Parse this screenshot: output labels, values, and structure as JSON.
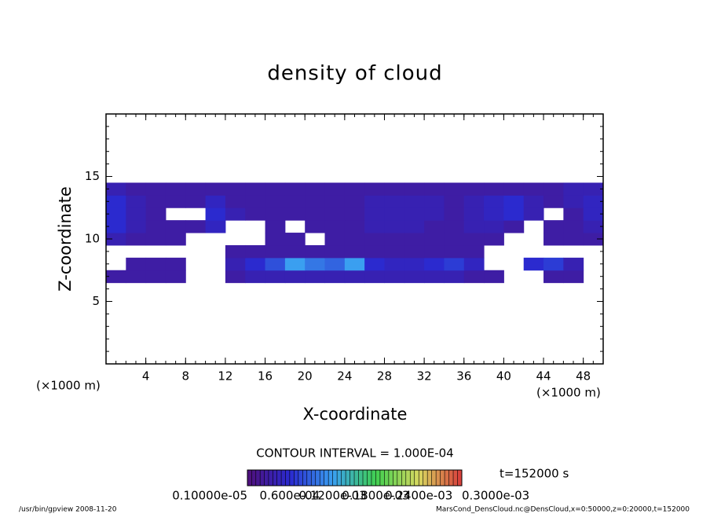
{
  "chart_data": {
    "type": "heatmap",
    "title": "density of cloud",
    "x_label": "X-coordinate",
    "y_label": "Z-coordinate",
    "x_unit": "(×1000 m)",
    "x_unit_right": "(×1000 m)",
    "contour_interval": "CONTOUR INTERVAL = 1.000E-04",
    "time_label": "t=152000 s",
    "footer_left": "/usr/bin/gpview  2008-11-20",
    "footer_right": "MarsCond_DensCloud.nc@DensCloud,x=0:50000,z=0:20000,t=152000",
    "xlim": [
      0,
      50
    ],
    "ylim": [
      0,
      20
    ],
    "xticks": [
      4,
      8,
      12,
      16,
      20,
      24,
      28,
      32,
      36,
      40,
      44,
      48
    ],
    "yticks": [
      5,
      10,
      15
    ],
    "xminor_step": 1,
    "yminor_step": 1,
    "x": [
      1,
      3,
      5,
      7,
      9,
      11,
      13,
      15,
      17,
      19,
      21,
      23,
      25,
      27,
      29,
      31,
      33,
      35,
      37,
      39,
      41,
      43,
      45,
      47,
      49
    ],
    "z": [
      7,
      8,
      9,
      10,
      11,
      12,
      13,
      14
    ],
    "values": [
      [
        3e-05,
        3e-05,
        3e-05,
        3e-05,
        null,
        null,
        3e-05,
        4e-05,
        4e-05,
        4e-05,
        4e-05,
        4e-05,
        4e-05,
        4e-05,
        4e-05,
        4e-05,
        4e-05,
        4e-05,
        3e-05,
        3e-05,
        null,
        null,
        3e-05,
        3e-05,
        null
      ],
      [
        null,
        3e-05,
        3e-05,
        3e-05,
        null,
        null,
        4e-05,
        6e-05,
        8e-05,
        0.00012,
        0.0001,
        9e-05,
        0.00012,
        6e-05,
        5e-05,
        5e-05,
        6e-05,
        7e-05,
        5e-05,
        null,
        null,
        6e-05,
        7e-05,
        4e-05,
        null
      ],
      [
        null,
        null,
        null,
        null,
        null,
        null,
        3e-05,
        3e-05,
        3e-05,
        3e-05,
        3e-05,
        3e-05,
        3e-05,
        3e-05,
        3e-05,
        3e-05,
        3e-05,
        3e-05,
        3e-05,
        null,
        null,
        null,
        null,
        null,
        null
      ],
      [
        4e-05,
        3e-05,
        3e-05,
        3e-05,
        null,
        null,
        null,
        null,
        3e-05,
        3e-05,
        null,
        3e-05,
        3e-05,
        3e-05,
        3e-05,
        3e-05,
        3e-05,
        3e-05,
        3e-05,
        3e-05,
        null,
        null,
        3e-05,
        3e-05,
        3e-05
      ],
      [
        6e-05,
        4e-05,
        3e-05,
        3e-05,
        3e-05,
        5e-05,
        null,
        null,
        3e-05,
        null,
        3e-05,
        3e-05,
        3e-05,
        4e-05,
        4e-05,
        4e-05,
        3e-05,
        3e-05,
        4e-05,
        4e-05,
        3e-05,
        null,
        3e-05,
        3e-05,
        4e-05
      ],
      [
        6e-05,
        4e-05,
        3e-05,
        null,
        null,
        6e-05,
        4e-05,
        3e-05,
        3e-05,
        3e-05,
        3e-05,
        3e-05,
        3e-05,
        4e-05,
        4e-05,
        4e-05,
        4e-05,
        3e-05,
        4e-05,
        5e-05,
        6e-05,
        4e-05,
        null,
        3e-05,
        5e-05
      ],
      [
        6e-05,
        4e-05,
        3e-05,
        3e-05,
        3e-05,
        5e-05,
        3e-05,
        3e-05,
        3e-05,
        3e-05,
        3e-05,
        3e-05,
        3e-05,
        4e-05,
        4e-05,
        4e-05,
        4e-05,
        3e-05,
        4e-05,
        5e-05,
        6e-05,
        4e-05,
        3e-05,
        4e-05,
        5e-05
      ],
      [
        4e-05,
        3e-05,
        3e-05,
        3e-05,
        3e-05,
        3e-05,
        3e-05,
        3e-05,
        3e-05,
        3e-05,
        3e-05,
        3e-05,
        3e-05,
        3e-05,
        3e-05,
        3e-05,
        3e-05,
        3e-05,
        3e-05,
        3e-05,
        3e-05,
        3e-05,
        3e-05,
        4e-05,
        4e-05
      ]
    ],
    "colormap": [
      "#50107a",
      "#2a2ad0",
      "#3aa0f0",
      "#40d050",
      "#d8d860",
      "#d83a3a"
    ],
    "colorbar_ticks": [
      {
        "value": 1e-06,
        "label": "0.10000e-05"
      },
      {
        "value": 6e-05,
        "label": "0.600e-04"
      },
      {
        "value": 0.00012,
        "label": "0.1200e-03"
      },
      {
        "value": 0.00018,
        "label": "0.1800e-03"
      },
      {
        "value": 0.00024,
        "label": "0.2400e-03"
      },
      {
        "value": 0.0003,
        "label": "0.3000e-03"
      }
    ]
  }
}
